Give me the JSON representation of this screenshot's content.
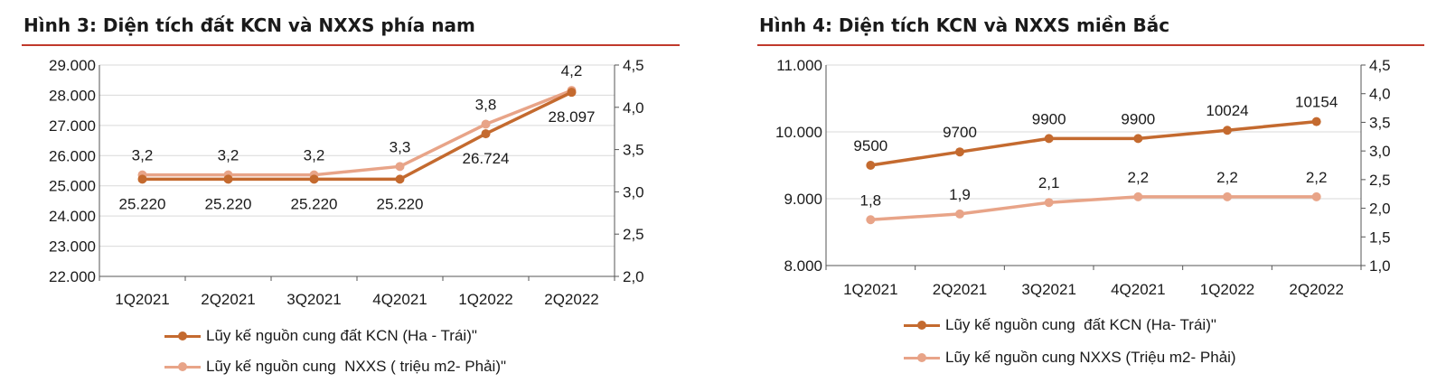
{
  "chart_data": [
    {
      "type": "line",
      "title": "Hình 3: Diện tích đất KCN và NXXS phía nam",
      "categories": [
        "1Q2021",
        "2Q2021",
        "3Q2021",
        "4Q2021",
        "1Q2022",
        "2Q2022"
      ],
      "series": [
        {
          "name": "Lũy kế nguồn cung đất KCN (Ha - Trái)\"",
          "axis": "left",
          "color": "#c46a2f",
          "values": [
            25220,
            25220,
            25220,
            25220,
            26724,
            28097
          ],
          "labels": [
            "25.220",
            "25.220",
            "25.220",
            "25.220",
            "26.724",
            "28.097"
          ]
        },
        {
          "name": "Lũy kế nguồn cung  NXXS ( triệu m2- Phải)\"",
          "axis": "right",
          "color": "#e8a488",
          "values": [
            3.2,
            3.2,
            3.2,
            3.3,
            3.8,
            4.2
          ],
          "labels": [
            "3,2",
            "3,2",
            "3,2",
            "3,3",
            "3,8",
            "4,2"
          ]
        }
      ],
      "y_left": {
        "ylim": [
          22000,
          29000
        ],
        "ticks": [
          22000,
          23000,
          24000,
          25000,
          26000,
          27000,
          28000,
          29000
        ],
        "tick_labels": [
          "22.000",
          "23.000",
          "24.000",
          "25.000",
          "26.000",
          "27.000",
          "28.000",
          "29.000"
        ]
      },
      "y_right": {
        "ylim": [
          2.0,
          4.5
        ],
        "ticks": [
          2.0,
          2.5,
          3.0,
          3.5,
          4.0,
          4.5
        ],
        "tick_labels": [
          "2,0",
          "2,5",
          "3,0",
          "3,5",
          "4,0",
          "4,5"
        ]
      },
      "grid": true,
      "legend_position": "bottom"
    },
    {
      "type": "line",
      "title": "Hình 4: Diện tích KCN và NXXS miền Bắc",
      "categories": [
        "1Q2021",
        "2Q2021",
        "3Q2021",
        "4Q2021",
        "1Q2022",
        "2Q2022"
      ],
      "series": [
        {
          "name": "Lũy kế nguồn cung  đất KCN (Ha- Trái)\"",
          "axis": "left",
          "color": "#c46a2f",
          "values": [
            9500,
            9700,
            9900,
            9900,
            10024,
            10154
          ],
          "labels": [
            "9500",
            "9700",
            "9900",
            "9900",
            "10024",
            "10154"
          ]
        },
        {
          "name": "Lũy kế nguồn cung NXXS (Triệu m2- Phải)",
          "axis": "right",
          "color": "#e8a488",
          "values": [
            1.8,
            1.9,
            2.1,
            2.2,
            2.2,
            2.2
          ],
          "labels": [
            "1,8",
            "1,9",
            "2,1",
            "2,2",
            "2,2",
            "2,2"
          ]
        }
      ],
      "y_left": {
        "ylim": [
          8000,
          11000
        ],
        "ticks": [
          8000,
          9000,
          10000,
          11000
        ],
        "tick_labels": [
          "8.000",
          "9.000",
          "10.000",
          "11.000"
        ]
      },
      "y_right": {
        "ylim": [
          1.0,
          4.5
        ],
        "ticks": [
          1.0,
          1.5,
          2.0,
          2.5,
          3.0,
          3.5,
          4.0,
          4.5
        ],
        "tick_labels": [
          "1,0",
          "1,5",
          "2,0",
          "2,5",
          "3,0",
          "3,5",
          "4,0",
          "4,5"
        ]
      },
      "grid": true,
      "legend_position": "bottom"
    }
  ]
}
